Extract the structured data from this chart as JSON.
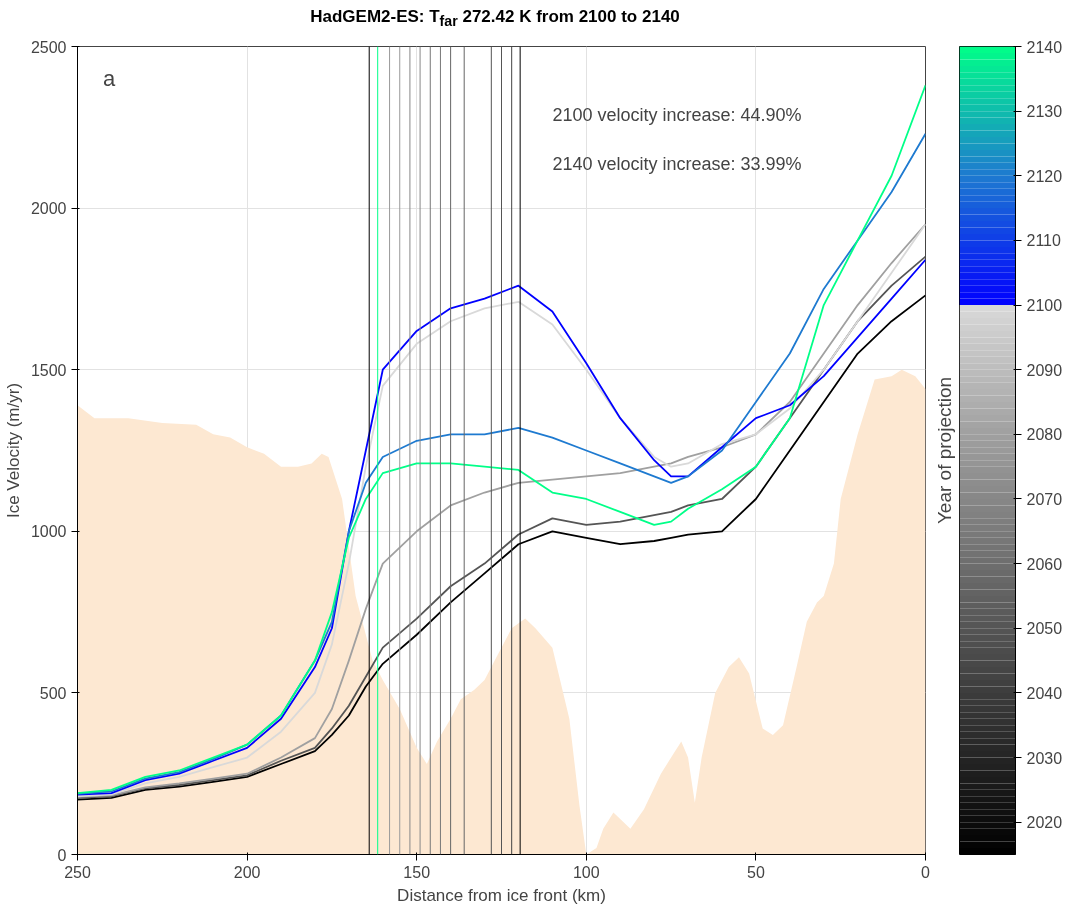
{
  "chart_data": {
    "type": "line",
    "title": "HadGEM2-ES: T$_{far}$ 272.42 K from 2100 to 2140",
    "xlabel": "Distance from ice front (km)",
    "ylabel": "Ice Velocity (m/yr)",
    "clabel": "Year of projection",
    "xlim": [
      250,
      0
    ],
    "ylim": [
      0,
      2500
    ],
    "xticks": [
      250,
      200,
      150,
      100,
      50,
      0
    ],
    "yticks": [
      0,
      500,
      1000,
      1500,
      2000,
      2500
    ],
    "grid": true,
    "clim": [
      2015,
      2140
    ],
    "cticks": [
      2020,
      2030,
      2040,
      2050,
      2060,
      2070,
      2080,
      2090,
      2100,
      2110,
      2120,
      2130,
      2140
    ],
    "annotations": [
      "a",
      "2100 velocity increase: 44.90%",
      "2140 velocity increase: 33.99%"
    ],
    "x": [
      250,
      240,
      230,
      220,
      210,
      200,
      190,
      180,
      175,
      170,
      165,
      160,
      150,
      140,
      130,
      120,
      110,
      100,
      90,
      80,
      75,
      70,
      60,
      50,
      40,
      30,
      20,
      10,
      0
    ],
    "series": [
      {
        "type": "area",
        "color": "#fde8d2",
        "x": [
          250,
          245,
          235,
          225,
          215,
          210,
          205,
          200,
          195,
          190,
          185,
          181,
          178,
          176,
          172,
          168,
          163,
          160,
          155,
          150,
          147,
          144,
          140,
          137,
          133,
          130,
          127,
          122,
          118,
          115,
          110,
          105,
          102,
          100,
          97,
          95,
          92,
          90,
          87,
          83,
          78,
          75,
          72,
          70,
          68,
          66,
          62,
          58,
          55,
          52,
          48,
          45,
          42,
          38,
          35,
          32,
          30,
          27,
          25,
          20,
          15,
          10,
          7,
          3,
          0
        ],
        "values": [
          1390,
          1350,
          1350,
          1335,
          1330,
          1300,
          1290,
          1260,
          1240,
          1200,
          1200,
          1210,
          1240,
          1230,
          1100,
          800,
          600,
          540,
          450,
          330,
          280,
          350,
          420,
          480,
          510,
          540,
          600,
          700,
          730,
          700,
          640,
          420,
          150,
          0,
          20,
          80,
          130,
          110,
          80,
          140,
          250,
          300,
          350,
          300,
          160,
          300,
          500,
          580,
          610,
          560,
          390,
          370,
          400,
          580,
          720,
          780,
          800,
          900,
          1100,
          1300,
          1470,
          1480,
          1500,
          1480,
          1440
        ]
      },
      {
        "color": "#000000",
        "values": [
          170,
          175,
          200,
          210,
          225,
          240,
          280,
          320,
          370,
          430,
          520,
          590,
          680,
          780,
          870,
          960,
          1000,
          980,
          960,
          970,
          980,
          990,
          1000,
          1100,
          1250,
          1400,
          1550,
          1650,
          1730
        ]
      },
      {
        "color": "#555555",
        "values": [
          175,
          180,
          205,
          215,
          230,
          245,
          290,
          330,
          390,
          460,
          550,
          640,
          730,
          830,
          900,
          990,
          1040,
          1020,
          1030,
          1050,
          1060,
          1080,
          1100,
          1200,
          1350,
          1500,
          1650,
          1760,
          1850
        ]
      },
      {
        "color": "#a0a0a0",
        "values": [
          178,
          183,
          208,
          220,
          235,
          250,
          300,
          360,
          450,
          600,
          760,
          900,
          1000,
          1080,
          1120,
          1150,
          1160,
          1170,
          1180,
          1200,
          1210,
          1230,
          1260,
          1300,
          1400,
          1550,
          1700,
          1830,
          1950
        ]
      },
      {
        "color": "#d9d9d9",
        "values": [
          180,
          186,
          220,
          240,
          270,
          300,
          380,
          500,
          650,
          900,
          1200,
          1450,
          1580,
          1650,
          1690,
          1710,
          1640,
          1500,
          1350,
          1230,
          1200,
          1210,
          1270,
          1300,
          1380,
          1500,
          1650,
          1800,
          1950
        ]
      },
      {
        "color": "#0000ff",
        "values": [
          185,
          190,
          230,
          250,
          290,
          330,
          420,
          580,
          700,
          1000,
          1250,
          1500,
          1620,
          1690,
          1720,
          1760,
          1680,
          1520,
          1350,
          1220,
          1170,
          1170,
          1260,
          1350,
          1390,
          1480,
          1600,
          1720,
          1840
        ]
      },
      {
        "color": "#1e7ad0",
        "values": [
          188,
          195,
          235,
          255,
          295,
          340,
          430,
          600,
          720,
          1000,
          1150,
          1230,
          1280,
          1300,
          1300,
          1320,
          1290,
          1250,
          1210,
          1170,
          1150,
          1170,
          1250,
          1400,
          1550,
          1750,
          1900,
          2050,
          2230
        ]
      },
      {
        "color": "#00ff88",
        "values": [
          190,
          200,
          240,
          260,
          300,
          340,
          430,
          600,
          750,
          980,
          1100,
          1180,
          1210,
          1210,
          1200,
          1190,
          1120,
          1100,
          1060,
          1020,
          1030,
          1070,
          1130,
          1200,
          1350,
          1700,
          1900,
          2100,
          2380
        ]
      }
    ],
    "ref_lines": [
      {
        "axis": "x",
        "value": 164,
        "color": "#000000"
      },
      {
        "axis": "x",
        "value": 161.5,
        "color": "#00ff88"
      },
      {
        "axis": "x",
        "value": 158,
        "color": "#999999"
      },
      {
        "axis": "x",
        "value": 155,
        "color": "#999999"
      },
      {
        "axis": "x",
        "value": 152,
        "color": "#888888"
      },
      {
        "axis": "x",
        "value": 149,
        "color": "#888888"
      },
      {
        "axis": "x",
        "value": 146,
        "color": "#777777"
      },
      {
        "axis": "x",
        "value": 143,
        "color": "#777777"
      },
      {
        "axis": "x",
        "value": 140,
        "color": "#666666"
      },
      {
        "axis": "x",
        "value": 136,
        "color": "#666666"
      },
      {
        "axis": "x",
        "value": 128,
        "color": "#555555"
      },
      {
        "axis": "x",
        "value": 125,
        "color": "#555555"
      },
      {
        "axis": "x",
        "value": 122,
        "color": "#444444"
      },
      {
        "axis": "x",
        "value": 119.5,
        "color": "#000000"
      }
    ]
  }
}
